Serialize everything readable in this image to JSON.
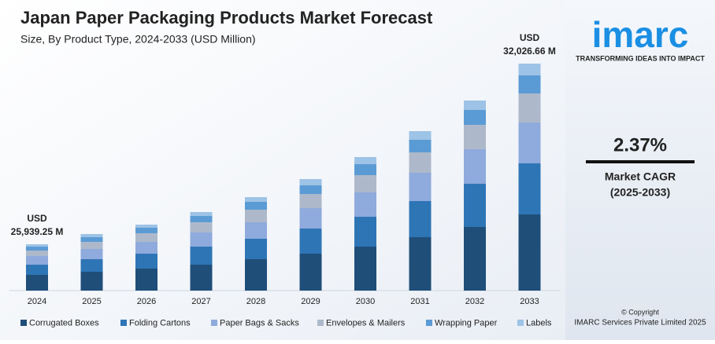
{
  "chart_data": {
    "type": "stacked-bar",
    "title": "Japan Paper Packaging Products Market Forecast",
    "subtitle": "Size, By Product Type, 2024-2033 (USD Million)",
    "categories": [
      "2024",
      "2025",
      "2026",
      "2027",
      "2028",
      "2029",
      "2030",
      "2031",
      "2032",
      "2033"
    ],
    "series": [
      {
        "name": "Corrugated Boxes",
        "color": "#1f4e79",
        "values": [
          20,
          24,
          28,
          33,
          40,
          47,
          56,
          68,
          81,
          97
        ]
      },
      {
        "name": "Folding Cartons",
        "color": "#2e75b6",
        "values": [
          13,
          16,
          19,
          23,
          26,
          32,
          38,
          46,
          55,
          65
        ]
      },
      {
        "name": "Paper Bags & Sacks",
        "color": "#8faadc",
        "values": [
          11,
          13,
          15,
          18,
          21,
          26,
          31,
          36,
          44,
          52
        ]
      },
      {
        "name": "Envelopes & Mailers",
        "color": "#adb9ca",
        "values": [
          7,
          9,
          11,
          13,
          16,
          18,
          22,
          26,
          31,
          37
        ]
      },
      {
        "name": "Wrapping Paper",
        "color": "#5b9bd5",
        "values": [
          5,
          6,
          7,
          8,
          10,
          11,
          14,
          16,
          19,
          23
        ]
      },
      {
        "name": "Labels",
        "color": "#9dc3e6",
        "values": [
          3,
          4,
          4,
          5,
          6,
          8,
          9,
          11,
          12,
          15
        ]
      }
    ],
    "ylim": [
      0,
      310
    ],
    "annotations": [
      [
        "USD",
        "25,939.25 M"
      ],
      [
        "USD",
        "32,026.66 M"
      ]
    ]
  },
  "sidebar": {
    "logo": "imarc",
    "tagline": "TRANSFORMING IDEAS INTO IMPACT",
    "cagr": "2.37%",
    "cagr_label": "Market CAGR",
    "cagr_period": "(2025-2033)",
    "copyright": "© Copyright",
    "company": "IMARC Services Private Limited 2025"
  }
}
